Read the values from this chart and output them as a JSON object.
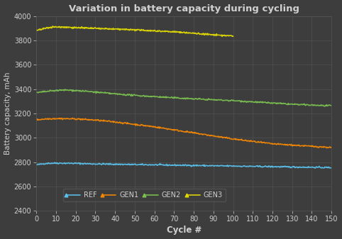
{
  "title": "Variation in battery capacity during cycling",
  "xlabel": "Cycle #",
  "ylabel": "Battery capacity, mAh",
  "background_color": "#3d3d3d",
  "grid_color": "#555555",
  "text_color": "#d0d0d0",
  "ylim": [
    2400,
    4000
  ],
  "xlim": [
    0,
    150
  ],
  "yticks": [
    2400,
    2600,
    2800,
    3000,
    3200,
    3400,
    3600,
    3800,
    4000
  ],
  "xticks": [
    0,
    10,
    20,
    30,
    40,
    50,
    60,
    70,
    80,
    90,
    100,
    110,
    120,
    130,
    140,
    150
  ],
  "series": {
    "REF": {
      "color": "#5bc8f5",
      "x": [
        0,
        5,
        10,
        20,
        30,
        40,
        50,
        60,
        70,
        80,
        90,
        100,
        110,
        120,
        130,
        140,
        150
      ],
      "y": [
        2778,
        2790,
        2792,
        2790,
        2785,
        2783,
        2780,
        2778,
        2775,
        2773,
        2770,
        2768,
        2765,
        2763,
        2760,
        2758,
        2755
      ],
      "linewidth": 1.2
    },
    "GEN1": {
      "color": "#ff8c00",
      "x": [
        0,
        5,
        10,
        20,
        30,
        40,
        50,
        60,
        70,
        80,
        90,
        100,
        110,
        120,
        130,
        140,
        150
      ],
      "y": [
        3148,
        3155,
        3158,
        3155,
        3145,
        3130,
        3110,
        3090,
        3065,
        3040,
        3015,
        2990,
        2970,
        2950,
        2940,
        2930,
        2920
      ],
      "linewidth": 1.2
    },
    "GEN2": {
      "color": "#7ec850",
      "x": [
        0,
        5,
        10,
        15,
        20,
        30,
        40,
        50,
        60,
        70,
        80,
        90,
        100,
        110,
        120,
        130,
        140,
        150
      ],
      "y": [
        3370,
        3380,
        3388,
        3392,
        3388,
        3375,
        3360,
        3348,
        3338,
        3328,
        3320,
        3312,
        3305,
        3295,
        3285,
        3275,
        3268,
        3262
      ],
      "linewidth": 1.2
    },
    "GEN3": {
      "color": "#e8e000",
      "x": [
        0,
        5,
        8,
        15,
        20,
        30,
        40,
        50,
        60,
        70,
        80,
        90,
        100
      ],
      "y": [
        3882,
        3900,
        3910,
        3908,
        3904,
        3898,
        3892,
        3886,
        3878,
        3870,
        3858,
        3845,
        3835
      ],
      "linewidth": 1.2
    }
  },
  "legend_order": [
    "REF",
    "GEN1",
    "GEN2",
    "GEN3"
  ]
}
